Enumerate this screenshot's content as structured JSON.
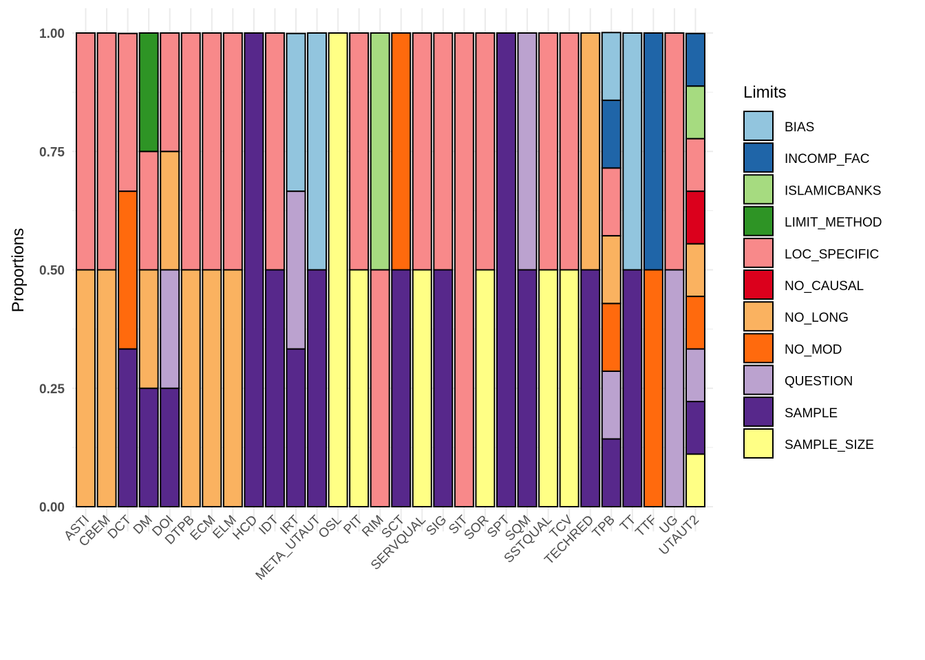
{
  "chart_data": {
    "type": "bar",
    "stacked": true,
    "title": "",
    "xlabel": "",
    "ylabel": "Proportions",
    "ylim": [
      0,
      1
    ],
    "yticks": [
      "0.00",
      "0.25",
      "0.50",
      "0.75",
      "1.00"
    ],
    "grid": true,
    "legend": {
      "title": "Limits",
      "position": "right"
    },
    "categories": [
      "ASTI",
      "CBEM",
      "DCT",
      "DM",
      "DOI",
      "DTPB",
      "ECM",
      "ELM",
      "HCD",
      "IDT",
      "IRT",
      "META_UTAUT",
      "OSL",
      "PIT",
      "RIM",
      "SCT",
      "SERVQUAL",
      "SIG",
      "SIT",
      "SOR",
      "SPT",
      "SQM",
      "SSTQUAL",
      "TCV",
      "TECHRED",
      "TPB",
      "TT",
      "TTF",
      "UG",
      "UTAUT2"
    ],
    "series": [
      {
        "name": "BIAS",
        "color": "#92c5de",
        "values": [
          0,
          0,
          0,
          0,
          0,
          0,
          0,
          0,
          0,
          0,
          0.333,
          0.5,
          0,
          0,
          0,
          0,
          0,
          0,
          0,
          0,
          0,
          0,
          0,
          0,
          0,
          0.143,
          0.5,
          0,
          0,
          0
        ]
      },
      {
        "name": "INCOMP_FAC",
        "color": "#1f65a8",
        "values": [
          0,
          0,
          0,
          0,
          0,
          0,
          0,
          0,
          0,
          0,
          0,
          0,
          0,
          0,
          0,
          0,
          0,
          0,
          0,
          0,
          0,
          0,
          0,
          0,
          0,
          0.143,
          0,
          0.5,
          0,
          0.111
        ]
      },
      {
        "name": "ISLAMICBANKS",
        "color": "#a6db80",
        "values": [
          0,
          0,
          0,
          0,
          0,
          0,
          0,
          0,
          0,
          0,
          0,
          0,
          0,
          0,
          0.5,
          0,
          0,
          0,
          0,
          0,
          0,
          0,
          0,
          0,
          0,
          0,
          0,
          0,
          0,
          0.111
        ]
      },
      {
        "name": "LIMIT_METHOD",
        "color": "#2e9425",
        "values": [
          0,
          0,
          0,
          0.25,
          0,
          0,
          0,
          0,
          0,
          0,
          0,
          0,
          0,
          0,
          0,
          0,
          0,
          0,
          0,
          0,
          0,
          0,
          0,
          0,
          0,
          0,
          0,
          0,
          0,
          0
        ]
      },
      {
        "name": "LOC_SPECIFIC",
        "color": "#f8898a",
        "values": [
          0.5,
          0.5,
          0.333,
          0.25,
          0.25,
          0.5,
          0.5,
          0.5,
          0,
          0.5,
          0,
          0,
          0,
          0.5,
          0.5,
          0,
          0.5,
          0.5,
          1,
          0.5,
          0,
          0,
          0.5,
          0.5,
          0,
          0.143,
          0,
          0,
          0.5,
          0.111
        ]
      },
      {
        "name": "NO_CAUSAL",
        "color": "#db001c",
        "values": [
          0,
          0,
          0,
          0,
          0,
          0,
          0,
          0,
          0,
          0,
          0,
          0,
          0,
          0,
          0,
          0,
          0,
          0,
          0,
          0,
          0,
          0,
          0,
          0,
          0,
          0,
          0,
          0,
          0,
          0.111
        ]
      },
      {
        "name": "NO_LONG",
        "color": "#fab260",
        "values": [
          0.5,
          0.5,
          0,
          0.25,
          0.25,
          0.5,
          0.5,
          0.5,
          0,
          0,
          0,
          0,
          0,
          0,
          0,
          0,
          0,
          0,
          0,
          0,
          0,
          0,
          0,
          0,
          0.5,
          0.143,
          0,
          0,
          0,
          0.111
        ]
      },
      {
        "name": "NO_MOD",
        "color": "#ff6a0d",
        "values": [
          0,
          0,
          0.333,
          0,
          0,
          0,
          0,
          0,
          0,
          0,
          0,
          0,
          0,
          0,
          0,
          0.5,
          0,
          0,
          0,
          0,
          0,
          0,
          0,
          0,
          0,
          0.143,
          0,
          0.5,
          0,
          0.111
        ]
      },
      {
        "name": "QUESTION",
        "color": "#bba2cf",
        "values": [
          0,
          0,
          0,
          0,
          0.25,
          0,
          0,
          0,
          0,
          0,
          0.333,
          0,
          0,
          0,
          0,
          0,
          0,
          0,
          0,
          0,
          0,
          0.5,
          0,
          0,
          0,
          0.143,
          0,
          0,
          0.5,
          0.111
        ]
      },
      {
        "name": "SAMPLE",
        "color": "#57288b",
        "values": [
          0,
          0,
          0.333,
          0.25,
          0.25,
          0,
          0,
          0,
          1,
          0.5,
          0.333,
          0.5,
          0,
          0,
          0,
          0.5,
          0,
          0.5,
          0,
          0,
          1,
          0.5,
          0,
          0,
          0.5,
          0.143,
          0.5,
          0,
          0,
          0.111
        ]
      },
      {
        "name": "SAMPLE_SIZE",
        "color": "#ffff85",
        "values": [
          0,
          0,
          0,
          0,
          0,
          0,
          0,
          0,
          0,
          0,
          0,
          0,
          1,
          0.5,
          0,
          0,
          0.5,
          0,
          0,
          0.5,
          0,
          0,
          0.5,
          0.5,
          0,
          0,
          0,
          0,
          0,
          0.111
        ]
      }
    ]
  }
}
